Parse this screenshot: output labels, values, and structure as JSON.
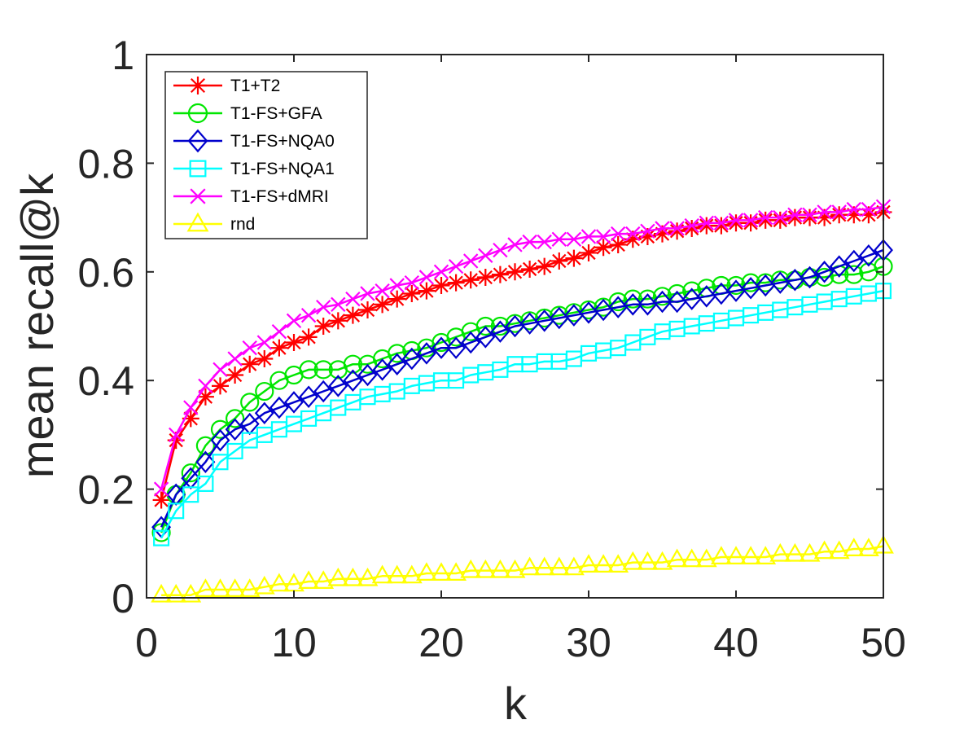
{
  "chart_data": {
    "type": "line",
    "title": "",
    "xlabel": "k",
    "ylabel": "mean recall@k",
    "xlim": [
      0,
      50
    ],
    "ylim": [
      0,
      1
    ],
    "xticks": [
      0,
      10,
      20,
      30,
      40,
      50
    ],
    "xtick_labels": [
      "0",
      "10",
      "20",
      "30",
      "40",
      "50"
    ],
    "yticks": [
      0,
      0.2,
      0.4,
      0.6,
      0.8,
      1
    ],
    "ytick_labels": [
      "0",
      "0.2",
      "0.4",
      "0.6",
      "0.8",
      "1"
    ],
    "legend_position": "top-left",
    "series": [
      {
        "name": "T1+T2",
        "color": "#ff0000",
        "marker": "asterisk",
        "values": [
          0.18,
          0.29,
          0.33,
          0.37,
          0.39,
          0.41,
          0.43,
          0.44,
          0.46,
          0.47,
          0.48,
          0.5,
          0.51,
          0.52,
          0.53,
          0.54,
          0.55,
          0.56,
          0.565,
          0.575,
          0.58,
          0.585,
          0.59,
          0.595,
          0.6,
          0.605,
          0.61,
          0.62,
          0.625,
          0.635,
          0.645,
          0.65,
          0.66,
          0.665,
          0.67,
          0.675,
          0.68,
          0.685,
          0.685,
          0.69,
          0.69,
          0.695,
          0.695,
          0.7,
          0.7,
          0.7,
          0.705,
          0.705,
          0.705,
          0.71
        ]
      },
      {
        "name": "T1-FS+GFA",
        "color": "#00e600",
        "marker": "circle",
        "values": [
          0.12,
          0.19,
          0.23,
          0.28,
          0.31,
          0.33,
          0.36,
          0.38,
          0.4,
          0.41,
          0.42,
          0.42,
          0.42,
          0.43,
          0.43,
          0.44,
          0.45,
          0.455,
          0.46,
          0.47,
          0.48,
          0.49,
          0.5,
          0.5,
          0.505,
          0.51,
          0.515,
          0.52,
          0.525,
          0.53,
          0.535,
          0.545,
          0.55,
          0.55,
          0.555,
          0.56,
          0.565,
          0.57,
          0.575,
          0.575,
          0.58,
          0.58,
          0.585,
          0.585,
          0.59,
          0.59,
          0.595,
          0.595,
          0.6,
          0.61
        ]
      },
      {
        "name": "T1-FS+NQA0",
        "color": "#0000cc",
        "marker": "diamond",
        "values": [
          0.13,
          0.19,
          0.22,
          0.25,
          0.29,
          0.31,
          0.32,
          0.34,
          0.35,
          0.36,
          0.37,
          0.38,
          0.39,
          0.4,
          0.41,
          0.42,
          0.43,
          0.44,
          0.45,
          0.46,
          0.46,
          0.47,
          0.48,
          0.49,
          0.5,
          0.505,
          0.51,
          0.515,
          0.52,
          0.525,
          0.53,
          0.535,
          0.54,
          0.54,
          0.545,
          0.545,
          0.55,
          0.555,
          0.56,
          0.565,
          0.57,
          0.575,
          0.58,
          0.585,
          0.59,
          0.6,
          0.61,
          0.62,
          0.63,
          0.64
        ]
      },
      {
        "name": "T1-FS+NQA1",
        "color": "#00ffff",
        "marker": "square",
        "values": [
          0.11,
          0.16,
          0.19,
          0.21,
          0.25,
          0.27,
          0.29,
          0.3,
          0.31,
          0.32,
          0.33,
          0.34,
          0.35,
          0.36,
          0.37,
          0.375,
          0.38,
          0.39,
          0.395,
          0.4,
          0.4,
          0.41,
          0.415,
          0.42,
          0.43,
          0.43,
          0.435,
          0.435,
          0.44,
          0.45,
          0.455,
          0.46,
          0.47,
          0.48,
          0.49,
          0.495,
          0.5,
          0.505,
          0.51,
          0.515,
          0.52,
          0.525,
          0.53,
          0.535,
          0.54,
          0.545,
          0.55,
          0.555,
          0.56,
          0.565
        ]
      },
      {
        "name": "T1-FS+dMRI",
        "color": "#ff00ff",
        "marker": "x",
        "values": [
          0.2,
          0.3,
          0.35,
          0.39,
          0.42,
          0.44,
          0.46,
          0.47,
          0.49,
          0.51,
          0.52,
          0.535,
          0.54,
          0.55,
          0.56,
          0.565,
          0.575,
          0.58,
          0.59,
          0.6,
          0.61,
          0.62,
          0.63,
          0.64,
          0.65,
          0.655,
          0.655,
          0.66,
          0.66,
          0.665,
          0.665,
          0.67,
          0.67,
          0.675,
          0.68,
          0.68,
          0.685,
          0.69,
          0.69,
          0.695,
          0.695,
          0.7,
          0.7,
          0.705,
          0.705,
          0.71,
          0.71,
          0.715,
          0.715,
          0.72
        ]
      },
      {
        "name": "rnd",
        "color": "#ffff00",
        "marker": "triangle",
        "values": [
          0.005,
          0.005,
          0.005,
          0.015,
          0.015,
          0.015,
          0.015,
          0.02,
          0.025,
          0.025,
          0.03,
          0.03,
          0.035,
          0.035,
          0.035,
          0.04,
          0.04,
          0.04,
          0.045,
          0.045,
          0.045,
          0.05,
          0.05,
          0.05,
          0.05,
          0.055,
          0.055,
          0.055,
          0.055,
          0.06,
          0.06,
          0.06,
          0.065,
          0.065,
          0.065,
          0.07,
          0.07,
          0.07,
          0.075,
          0.075,
          0.075,
          0.075,
          0.08,
          0.08,
          0.08,
          0.085,
          0.085,
          0.09,
          0.09,
          0.095
        ]
      }
    ]
  }
}
